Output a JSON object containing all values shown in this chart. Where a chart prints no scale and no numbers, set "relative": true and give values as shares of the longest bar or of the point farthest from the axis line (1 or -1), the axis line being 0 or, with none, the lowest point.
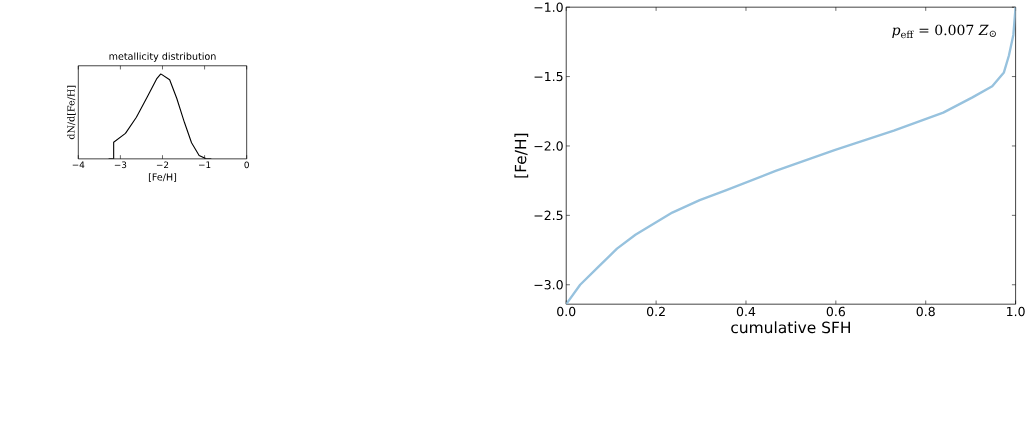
{
  "chart_data": [
    {
      "type": "line",
      "xlabel": "cumulative SFH",
      "ylabel": "[Fe/H]",
      "annotations": [
        "*p*$_{eff}$ = 0.007 *Z*$_{⊙}$"
      ],
      "xlim": [
        0,
        1
      ],
      "ylim": [
        -3.14,
        -1.0
      ],
      "xticks": [
        {
          "value": 0,
          "label": "0.0"
        },
        {
          "value": 0.2,
          "label": "0.2"
        },
        {
          "value": 0.4,
          "label": "0.4"
        },
        {
          "value": 0.6,
          "label": "0.6"
        },
        {
          "value": 0.8,
          "label": "0.8"
        },
        {
          "value": 1,
          "label": "1.0"
        }
      ],
      "yticks": [
        {
          "value": -3.0,
          "label": "−3.0"
        },
        {
          "value": -2.5,
          "label": "−2.5"
        },
        {
          "value": -2.0,
          "label": "−2.0"
        },
        {
          "value": -1.5,
          "label": "−1.5"
        },
        {
          "value": -1.0,
          "label": "−1.0"
        }
      ],
      "series": [
        {
          "color": "#97c2de",
          "x": [
            0,
            0.031,
            0.072,
            0.113,
            0.154,
            0.195,
            0.236,
            0.297,
            0.355,
            0.466,
            0.597,
            0.729,
            0.839,
            0.904,
            0.948,
            0.974,
            0.985,
            0.995,
            1.0
          ],
          "values": [
            -3.14,
            -3.0,
            -2.87,
            -2.74,
            -2.64,
            -2.56,
            -2.48,
            -2.39,
            -2.32,
            -2.18,
            -2.03,
            -1.89,
            -1.76,
            -1.65,
            -1.57,
            -1.47,
            -1.35,
            -1.2,
            -1.0
          ]
        }
      ]
    },
    {
      "type": "line",
      "title": "metallicity distribution",
      "xlabel": "[Fe/H]",
      "ylabel": "dN/d[Fe/H]",
      "relative": true,
      "xlim": [
        -4,
        0
      ],
      "xticks": [
        {
          "value": -4,
          "label": "−4"
        },
        {
          "value": -3,
          "label": "−3"
        },
        {
          "value": -2,
          "label": "−2"
        },
        {
          "value": -1,
          "label": "−1"
        },
        0
      ],
      "series": [
        {
          "color": "#000000",
          "x": [
            -3.27,
            -3.16,
            -3.16,
            -2.88,
            -2.62,
            -2.36,
            -2.14,
            -2.04,
            -1.83,
            -1.66,
            -1.48,
            -1.31,
            -1.13,
            -0.96,
            -0.85
          ],
          "values": [
            0,
            0,
            0.195,
            0.3,
            0.49,
            0.73,
            0.94,
            1.0,
            0.93,
            0.71,
            0.43,
            0.19,
            0.04,
            0,
            0
          ]
        }
      ]
    }
  ]
}
